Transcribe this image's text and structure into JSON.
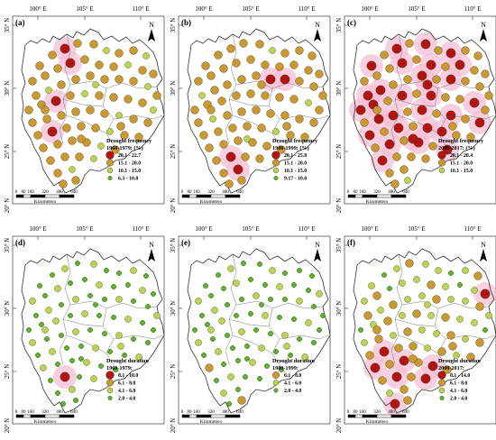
{
  "colors": {
    "class4": "#b01515",
    "class3": "#c99a33",
    "class2": "#b7d651",
    "class1": "#57b62c",
    "halo": "#f5bfd6",
    "stroke": "#4a2a00",
    "border": "#555555"
  },
  "axes": {
    "lon_labels": [
      "100° E",
      "105° E",
      "110° E"
    ],
    "lat_labels": [
      "35° N",
      "30° N",
      "25° N",
      "20° N"
    ]
  },
  "north_label": "N",
  "scalebar": {
    "ticks": [
      "0",
      "80",
      "160",
      "320",
      "480",
      "640"
    ],
    "unit": "Kilometers"
  },
  "panels": [
    {
      "label": "(a)",
      "legend_title": [
        "Drought frequency",
        "1960-1979: (%)"
      ],
      "legend": [
        {
          "label": "20.1 - 22.7",
          "class": "class4"
        },
        {
          "label": "15.1 - 20.0",
          "class": "class3"
        },
        {
          "label": "10.1 - 15.0",
          "class": "class2"
        },
        {
          "label": "6.3 - 10.0",
          "class": "class1"
        }
      ]
    },
    {
      "label": "(b)",
      "legend_title": [
        "Drought frequency",
        "1980-1999: (%)"
      ],
      "legend": [
        {
          "label": "20.1 - 25.8",
          "class": "class4"
        },
        {
          "label": "15.1 - 20.0",
          "class": "class3"
        },
        {
          "label": "10.1 - 15.0",
          "class": "class2"
        },
        {
          "label": "9.17 - 10.0",
          "class": "class1"
        }
      ]
    },
    {
      "label": "(c)",
      "legend_title": [
        "Drought frequency",
        "2000-2017: (%)"
      ],
      "legend": [
        {
          "label": "20.1 - 28.4",
          "class": "class4"
        },
        {
          "label": "15.1 - 20.0",
          "class": "class3"
        },
        {
          "label": "10.1 - 15.0",
          "class": "class2"
        }
      ]
    },
    {
      "label": "(d)",
      "legend_title": [
        "Drought duration",
        "1960-1979:"
      ],
      "legend": [
        {
          "label": "8.1 - 10.0",
          "class": "class4"
        },
        {
          "label": "6.1 - 8.0",
          "class": "class3"
        },
        {
          "label": "4.1 - 6.0",
          "class": "class2"
        },
        {
          "label": "2.0 - 4.0",
          "class": "class1"
        }
      ]
    },
    {
      "label": "(e)",
      "legend_title": [
        "Drought duration",
        "1980-1999:"
      ],
      "legend": [
        {
          "label": "6.1 - 8.0",
          "class": "class3"
        },
        {
          "label": "4.1 - 6.0",
          "class": "class2"
        },
        {
          "label": "2.0 - 4.0",
          "class": "class1"
        }
      ]
    },
    {
      "label": "(f)",
      "legend_title": [
        "Drought duration",
        "2000-2017:"
      ],
      "legend": [
        {
          "label": "8.1 - 14.0",
          "class": "class4"
        },
        {
          "label": "6.1 - 8.0",
          "class": "class3"
        },
        {
          "label": "4.1 - 6.0",
          "class": "class2"
        },
        {
          "label": "2.0 - 4.0",
          "class": "class1"
        }
      ]
    }
  ]
}
